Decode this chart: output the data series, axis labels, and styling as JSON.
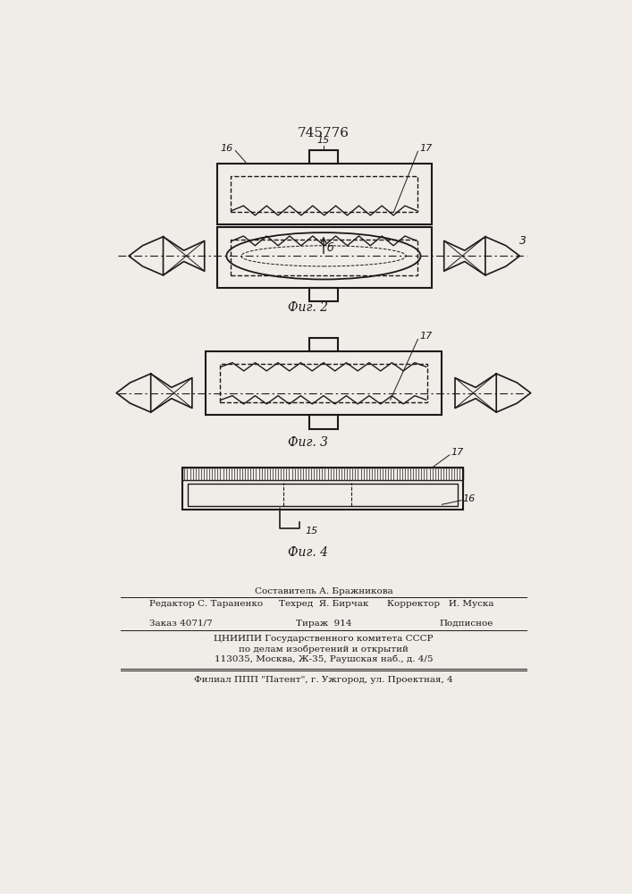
{
  "title": "745776",
  "fig2_label": "Фиг. 2",
  "fig3_label": "Фиг. 3",
  "fig4_label": "Фиг. 4",
  "bg_color": "#f0ede8",
  "line_color": "#1a1a1a",
  "footer_line7": "Филиал ППП \"Патент\", г. Ужгород, ул. Проектная, 4"
}
